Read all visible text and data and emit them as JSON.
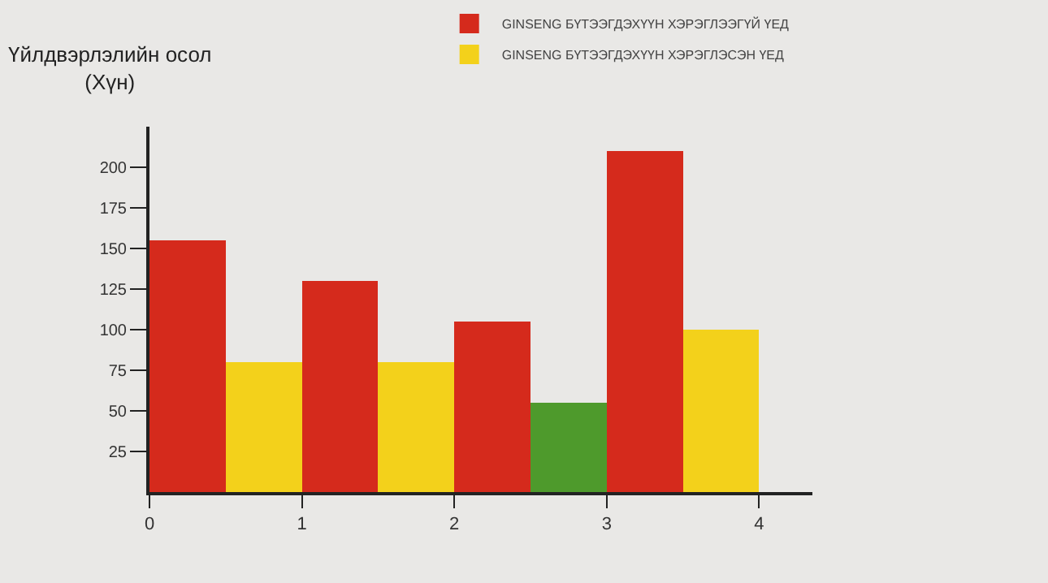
{
  "chart_data": {
    "type": "bar",
    "ylabel": "Үйлдвэрлэлийн осол\n(Хүн)",
    "x": [
      0.5,
      1.5,
      2.5,
      3.5
    ],
    "series": [
      {
        "name": "GINSENG БҮТЭЭГДЭХҮҮН ХЭРЭГЛЭЭГҮЙ ҮЕД",
        "color": "#d52a1c",
        "values": [
          155,
          130,
          105,
          210
        ]
      },
      {
        "name": "GINSENG БҮТЭЭГДЭХҮҮН ХЭРЭГЛЭСЭН ҮЕД",
        "color": "#f3d11b",
        "colors": [
          "#f3d11b",
          "#f3d11b",
          "#4e9a2c",
          "#f3d11b"
        ],
        "values": [
          80,
          80,
          55,
          100
        ]
      }
    ],
    "xlim": [
      0,
      4.35
    ],
    "xticks": [
      0,
      1,
      2,
      3,
      4
    ],
    "ylim": [
      0,
      225
    ],
    "yticks": [
      25,
      50,
      75,
      100,
      125,
      150,
      175,
      200
    ],
    "grid": false,
    "legend": "top right"
  }
}
